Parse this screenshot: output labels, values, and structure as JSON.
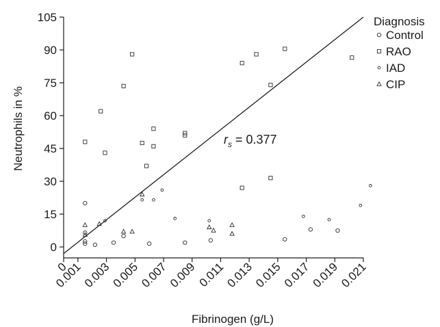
{
  "chart_data": {
    "type": "scatter",
    "title": "",
    "xlabel": "Fibrinogen (g/L)",
    "ylabel": "Neutrophils in %",
    "xlim": [
      0,
      0.021
    ],
    "ylim": [
      -5,
      105
    ],
    "x_ticks": [
      0,
      0.001,
      0.003,
      0.005,
      0.007,
      0.009,
      0.011,
      0.013,
      0.015,
      0.017,
      0.019,
      0.021
    ],
    "x_tick_labels": [
      "0",
      "0.001",
      "0.003",
      "0.005",
      "0.007",
      "0.009",
      "0.011",
      "0.013",
      "0.015",
      "0.017",
      "0.019",
      "0.021"
    ],
    "y_ticks": [
      0,
      15,
      30,
      45,
      60,
      75,
      90,
      105
    ],
    "y_tick_labels": [
      "0",
      "15",
      "30",
      "45",
      "60",
      "75",
      "90",
      "105"
    ],
    "grid": false,
    "legend": {
      "title": "Diagnosis",
      "position": "top-right"
    },
    "annotation": {
      "prefix": "r",
      "subscript": "s",
      "suffix": " = 0.377"
    },
    "reference_line": {
      "x": [
        0,
        0.021
      ],
      "y": [
        -3,
        105
      ]
    },
    "series": [
      {
        "name": "Control",
        "marker": "circle",
        "points": [
          [
            0.0015,
            20
          ],
          [
            0.0015,
            6.5
          ],
          [
            0.0015,
            2.5
          ],
          [
            0.0015,
            1.5
          ],
          [
            0.0022,
            1
          ],
          [
            0.0035,
            2
          ],
          [
            0.0042,
            5
          ],
          [
            0.006,
            1.5
          ],
          [
            0.0085,
            2
          ],
          [
            0.0103,
            3
          ],
          [
            0.0155,
            3.5
          ],
          [
            0.0173,
            8
          ],
          [
            0.0192,
            7.5
          ]
        ]
      },
      {
        "name": "RAO",
        "marker": "square",
        "points": [
          [
            0.0015,
            48
          ],
          [
            0.0026,
            62
          ],
          [
            0.0029,
            43
          ],
          [
            0.0042,
            73.5
          ],
          [
            0.0048,
            88
          ],
          [
            0.0055,
            47.5
          ],
          [
            0.0058,
            37
          ],
          [
            0.0063,
            54
          ],
          [
            0.0063,
            46
          ],
          [
            0.0085,
            52
          ],
          [
            0.0085,
            51
          ],
          [
            0.0125,
            27
          ],
          [
            0.0125,
            84
          ],
          [
            0.0135,
            88
          ],
          [
            0.0145,
            74
          ],
          [
            0.0145,
            31.5
          ],
          [
            0.0155,
            90.5
          ],
          [
            0.0202,
            86.5
          ]
        ]
      },
      {
        "name": "IAD",
        "marker": "small-circle",
        "points": [
          [
            0.0029,
            12
          ],
          [
            0.0055,
            21.5
          ],
          [
            0.0063,
            21.5
          ],
          [
            0.0069,
            26
          ],
          [
            0.0078,
            13
          ],
          [
            0.0102,
            12
          ],
          [
            0.0168,
            14
          ],
          [
            0.0186,
            12.5
          ],
          [
            0.0208,
            19
          ],
          [
            0.0215,
            28
          ]
        ]
      },
      {
        "name": "CIP",
        "marker": "triangle",
        "points": [
          [
            0.0015,
            10
          ],
          [
            0.0015,
            5.5
          ],
          [
            0.0025,
            10.5
          ],
          [
            0.0042,
            7
          ],
          [
            0.0048,
            7
          ],
          [
            0.0055,
            24
          ],
          [
            0.0102,
            9
          ],
          [
            0.0105,
            7.5
          ],
          [
            0.0118,
            10
          ],
          [
            0.0118,
            6
          ]
        ]
      }
    ]
  }
}
